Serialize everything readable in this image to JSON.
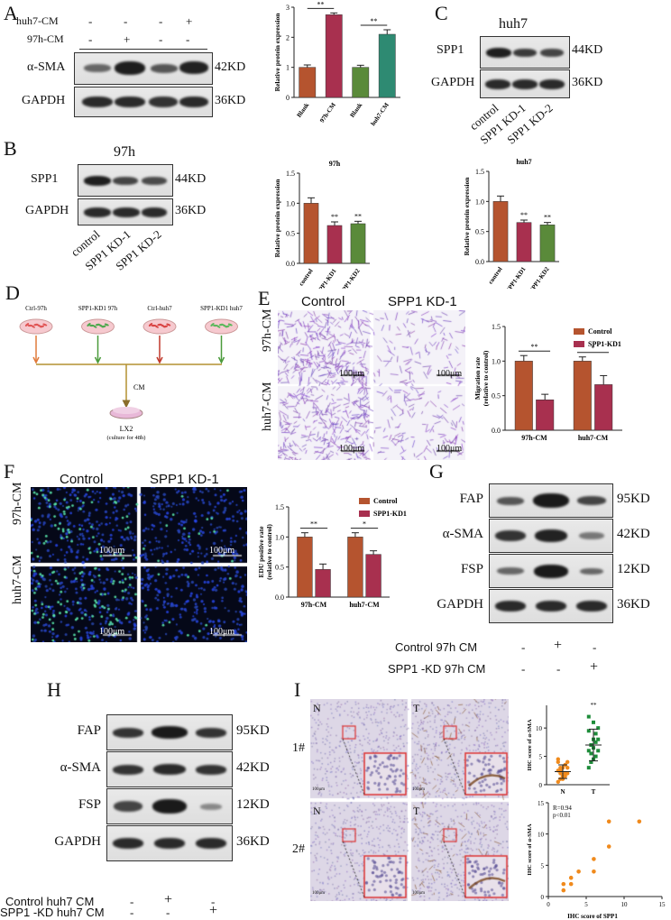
{
  "panels": {
    "A": {
      "letter": "A",
      "cond_rows": [
        {
          "label": "huh7-CM",
          "marks": [
            "-",
            "-",
            "-",
            "+"
          ]
        },
        {
          "label": "97h-CM",
          "marks": [
            "-",
            "+",
            "-",
            "-"
          ]
        }
      ],
      "blot_rows": [
        {
          "label": "α-SMA",
          "kd": "42KD"
        },
        {
          "label": "GAPDH",
          "kd": "36KD"
        }
      ],
      "chart": {
        "ylabel": "Relative protein expression",
        "categories": [
          "Blank",
          "97h-CM",
          "Blank",
          "huh7-CM"
        ],
        "sig": [
          "**",
          "**"
        ]
      }
    },
    "B": {
      "letter": "B",
      "cell": "97h",
      "blot_rows": [
        {
          "label": "SPP1",
          "kd": "44KD"
        },
        {
          "label": "GAPDH",
          "kd": "36KD"
        }
      ],
      "lanes": [
        "control",
        "SPP1 KD-1",
        "SPP1 KD-2"
      ],
      "chart_97h": {
        "title": "97h",
        "ylabel": "Relative protein expression",
        "categories": [
          "control",
          "SPP1-KD1",
          "SPP1-KD2"
        ],
        "sig": [
          "**",
          "**"
        ]
      },
      "chart_huh7": {
        "title": "huh7",
        "ylabel": "Relative protein expression",
        "categories": [
          "control",
          "SPP1-KD1",
          "SPP1-KD2"
        ],
        "sig": [
          "**",
          "**"
        ]
      }
    },
    "C": {
      "letter": "C",
      "cell": "huh7",
      "blot_rows": [
        {
          "label": "SPP1",
          "kd": "44KD"
        },
        {
          "label": "GAPDH",
          "kd": "36KD"
        }
      ],
      "lanes": [
        "control",
        "SPP1 KD-1",
        "SPP1 KD-2"
      ]
    },
    "D": {
      "letter": "D",
      "dishes": [
        "Ctrl-97h",
        "SPP1-KD1 97h",
        "Ctrl-huh7",
        "SPP1-KD1 huh7"
      ],
      "cm": "CM",
      "target": "LX2",
      "target_note": "(culture for 48h)"
    },
    "E": {
      "letter": "E",
      "cols": [
        "Control",
        "SPP1 KD-1"
      ],
      "rows": [
        "97h-CM",
        "huh7-CM"
      ],
      "scale": "100μm",
      "chart": {
        "ylabel": "Migration rate",
        "ylabel2": "(relative to control)",
        "legend": [
          "Control",
          "SPP1-KD1"
        ],
        "categories": [
          "97h-CM",
          "huh7-CM"
        ],
        "sig": [
          "**",
          "*"
        ]
      }
    },
    "F": {
      "letter": "F",
      "cols": [
        "Control",
        "SPP1 KD-1"
      ],
      "rows": [
        "97h-CM",
        "huh7-CM"
      ],
      "scale": "100μm",
      "chart": {
        "ylabel": "EDU positive rate",
        "ylabel2": "(relative to control)",
        "legend": [
          "Control",
          "SPP1-KD1"
        ],
        "categories": [
          "97h-CM",
          "huh7-CM"
        ],
        "sig": [
          "**",
          "*"
        ]
      }
    },
    "G": {
      "letter": "G",
      "blot_rows": [
        {
          "label": "FAP",
          "kd": "95KD"
        },
        {
          "label": "α-SMA",
          "kd": "42KD"
        },
        {
          "label": "FSP",
          "kd": "12KD"
        },
        {
          "label": "GAPDH",
          "kd": "36KD"
        }
      ],
      "cond_rows": [
        {
          "label": "Control 97h CM",
          "marks": [
            "-",
            "+",
            "-"
          ]
        },
        {
          "label": "SPP1 -KD 97h CM",
          "marks": [
            "-",
            "-",
            "+"
          ]
        }
      ]
    },
    "H": {
      "letter": "H",
      "blot_rows": [
        {
          "label": "FAP",
          "kd": "95KD"
        },
        {
          "label": "α-SMA",
          "kd": "42KD"
        },
        {
          "label": "FSP",
          "kd": "12KD"
        },
        {
          "label": "GAPDH",
          "kd": "36KD"
        }
      ],
      "cond_rows": [
        {
          "label": "Control huh7 CM",
          "marks": [
            "-",
            "+",
            "-"
          ]
        },
        {
          "label": "SPP1 -KD huh7 CM",
          "marks": [
            "-",
            "-",
            "+"
          ]
        }
      ]
    },
    "I": {
      "letter": "I",
      "rows": [
        "1#",
        "2#"
      ],
      "tiles": [
        "N",
        "T",
        "N",
        "T"
      ],
      "scale": "100μm",
      "dot_chart": {
        "ylabel": "IHC score of α-SMA",
        "categories": [
          "N",
          "T"
        ],
        "sig": "**",
        "yticks": [
          "0",
          "5",
          "10"
        ]
      },
      "scatter": {
        "xlabel": "IHC score of SPP1",
        "ylabel": "IHC score of α-SMA",
        "r": "R=0.94",
        "p": "p<0.01",
        "xticks": [
          "0",
          "5",
          "10",
          "15"
        ],
        "yticks": [
          "0",
          "5",
          "10",
          "15"
        ]
      }
    }
  },
  "chart_data": [
    {
      "type": "bar",
      "id": "A",
      "categories": [
        "Blank",
        "97h-CM",
        "Blank",
        "huh7-CM"
      ],
      "values": [
        1.0,
        2.75,
        1.0,
        2.1
      ],
      "errors": [
        0.08,
        0.06,
        0.07,
        0.15
      ],
      "ylabel": "Relative protein expression",
      "ylim": [
        0,
        3
      ],
      "yticks": [
        0,
        1,
        2,
        3
      ],
      "colors": [
        "#b5542f",
        "#a8304f",
        "#5a8a3a",
        "#2e8a72"
      ]
    },
    {
      "type": "bar",
      "id": "B97h",
      "title": "97h",
      "categories": [
        "control",
        "SPP1-KD1",
        "SPP1-KD2"
      ],
      "values": [
        1.0,
        0.63,
        0.66
      ],
      "errors": [
        0.09,
        0.06,
        0.04
      ],
      "ylabel": "Relative protein expression",
      "ylim": [
        0,
        1.5
      ],
      "yticks": [
        0.0,
        0.5,
        1.0,
        1.5
      ],
      "colors": [
        "#b5542f",
        "#a8304f",
        "#5a8a3a"
      ]
    },
    {
      "type": "bar",
      "id": "Bhuh7",
      "title": "huh7",
      "categories": [
        "control",
        "SPP1-KD1",
        "SPP1-KD2"
      ],
      "values": [
        1.0,
        0.65,
        0.61
      ],
      "errors": [
        0.09,
        0.04,
        0.04
      ],
      "ylabel": "Relative protein expression",
      "ylim": [
        0,
        1.5
      ],
      "yticks": [
        0.0,
        0.5,
        1.0,
        1.5
      ],
      "colors": [
        "#b5542f",
        "#a8304f",
        "#5a8a3a"
      ]
    },
    {
      "type": "bar",
      "id": "E",
      "categories": [
        "97h-CM",
        "huh7-CM"
      ],
      "series": [
        {
          "name": "Control",
          "values": [
            1.0,
            1.0
          ],
          "errors": [
            0.08,
            0.06
          ]
        },
        {
          "name": "SPP1-KD1",
          "values": [
            0.44,
            0.66
          ],
          "errors": [
            0.08,
            0.13
          ]
        }
      ],
      "ylabel": "Migration rate (relative to control)",
      "ylim": [
        0,
        1.5
      ],
      "yticks": [
        0.0,
        0.5,
        1.0,
        1.5
      ],
      "legend": "top-right",
      "colors": [
        "#b5542f",
        "#a8304f"
      ]
    },
    {
      "type": "bar",
      "id": "F",
      "categories": [
        "97h-CM",
        "huh7-CM"
      ],
      "series": [
        {
          "name": "Control",
          "values": [
            1.0,
            1.0
          ],
          "errors": [
            0.07,
            0.07
          ]
        },
        {
          "name": "SPP1-KD1",
          "values": [
            0.46,
            0.71
          ],
          "errors": [
            0.09,
            0.06
          ]
        }
      ],
      "ylabel": "EDU positive rate (relative to control)",
      "ylim": [
        0,
        1.5
      ],
      "yticks": [
        0.0,
        0.5,
        1.0,
        1.5
      ],
      "legend": "top-right",
      "colors": [
        "#b5542f",
        "#a8304f"
      ]
    },
    {
      "type": "scatter",
      "id": "I-dot",
      "categories": [
        "N",
        "T"
      ],
      "N_values": [
        0.5,
        1.0,
        1.5,
        2.0,
        2.0,
        2.5,
        3.0,
        3.0,
        3.5,
        4.0,
        4.5,
        2.5,
        1.0,
        1.5,
        3.0,
        4.0,
        2.0
      ],
      "T_values": [
        3.0,
        4.0,
        4.5,
        5.0,
        6.0,
        6.0,
        7.0,
        8.0,
        9.0,
        10.0,
        12.0,
        5.5,
        6.5,
        7.5,
        8.0,
        9.5,
        4.0,
        11.0
      ],
      "means": [
        2.3,
        7.0
      ],
      "sd": [
        1.2,
        2.8
      ],
      "ylabel": "IHC score of α-SMA",
      "ylim": [
        0,
        14
      ],
      "colors": [
        "#f08a1c",
        "#1e8c3a"
      ]
    },
    {
      "type": "scatter",
      "id": "I-corr",
      "x": [
        2,
        2,
        3,
        3,
        4,
        6,
        6,
        8,
        8,
        12
      ],
      "y": [
        1,
        2,
        2,
        3,
        4,
        4,
        6,
        8,
        12,
        12
      ],
      "xlabel": "IHC score of SPP1",
      "ylabel": "IHC score of α-SMA",
      "xlim": [
        0,
        15
      ],
      "ylim": [
        0,
        15
      ],
      "xticks": [
        0,
        5,
        10,
        15
      ],
      "yticks": [
        0,
        5,
        10,
        15
      ],
      "colors": [
        "#f08a1c"
      ]
    }
  ]
}
